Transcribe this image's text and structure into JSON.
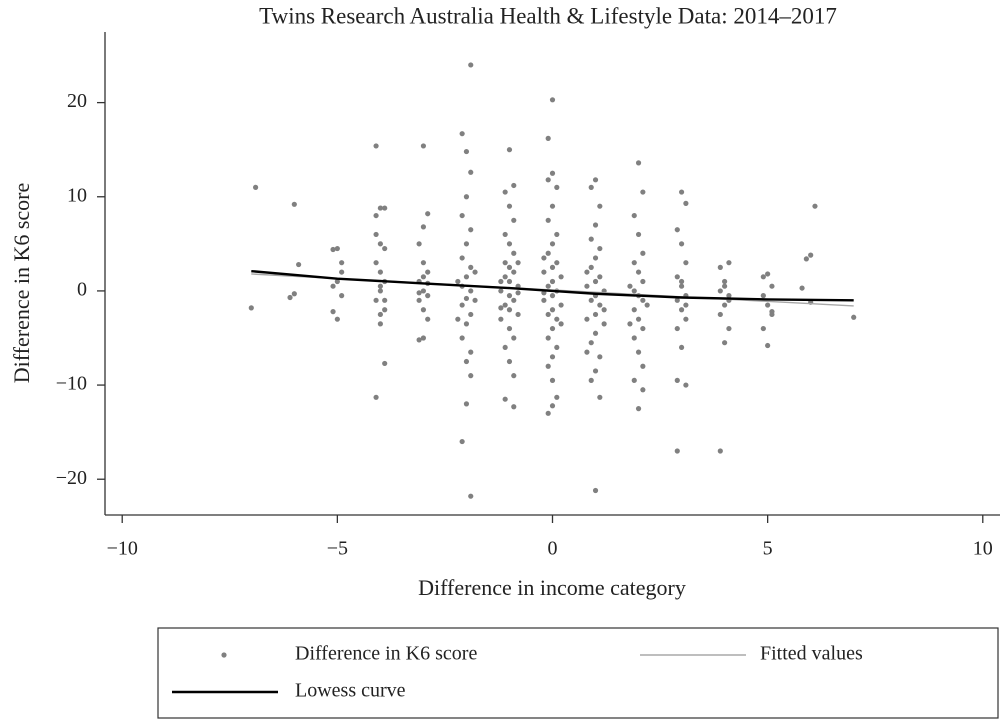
{
  "chart_data": {
    "type": "scatter",
    "title": "Twins Research Australia Health & Lifestyle Data: 2014–2017",
    "xlabel": "Difference in income category",
    "ylabel": "Difference in K6 score",
    "xlim": [
      -10.4,
      10.4
    ],
    "ylim": [
      -23.8,
      27.5
    ],
    "xticks": [
      {
        "value": -10,
        "label": "−10"
      },
      {
        "value": -5,
        "label": "−5"
      },
      0,
      5,
      10
    ],
    "yticks": [
      {
        "value": -20,
        "label": "−20"
      },
      {
        "value": -10,
        "label": "−10"
      },
      0,
      10,
      20
    ],
    "series": [
      {
        "name": "Difference in K6 score",
        "style": "markers",
        "color": "#808080",
        "x": [
          -7.0,
          -6.9,
          -6.1,
          -6.0,
          -6.0,
          -5.9,
          -5.1,
          -5.0,
          -5.1,
          -4.9,
          -5.0,
          -5.1,
          -4.9,
          -5.0,
          -4.9,
          -4.1,
          -4.1,
          -4.0,
          -3.9,
          -4.0,
          -4.1,
          -4.0,
          -3.9,
          -4.0,
          -4.1,
          -3.9,
          -4.0,
          -3.9,
          -4.1,
          -4.0,
          -3.9,
          -4.1,
          -4.0,
          -3.9,
          -3.0,
          -2.9,
          -3.0,
          -3.1,
          -3.0,
          -2.9,
          -3.1,
          -3.0,
          -2.9,
          -3.1,
          -3.0,
          -2.9,
          -3.0,
          -3.1,
          -2.9,
          -3.0,
          -3.1,
          -2.1,
          -1.9,
          -2.0,
          -1.9,
          -2.0,
          -2.1,
          -1.9,
          -2.0,
          -2.1,
          -1.9,
          -2.0,
          -2.1,
          -1.9,
          -2.0,
          -2.1,
          -1.9,
          -2.0,
          -2.1,
          -1.9,
          -2.0,
          -1.9,
          -2.0,
          -2.1,
          -1.9,
          -2.2,
          -1.8,
          -2.2,
          -1.8,
          -1.0,
          -0.9,
          -1.1,
          -1.0,
          -0.9,
          -1.1,
          -1.0,
          -0.9,
          -1.1,
          -1.0,
          -0.9,
          -1.1,
          -1.0,
          -0.8,
          -1.2,
          -1.0,
          -0.9,
          -1.1,
          -1.0,
          -0.8,
          -1.2,
          -1.0,
          -0.9,
          -1.1,
          -1.0,
          -0.9,
          -1.1,
          -0.9,
          -1.2,
          -0.8,
          -1.2,
          -0.8,
          0.0,
          -0.1,
          0.0,
          -0.1,
          0.1,
          0.0,
          -0.1,
          0.1,
          0.0,
          -0.1,
          0.1,
          0.0,
          -0.2,
          0.2,
          0.0,
          -0.1,
          0.1,
          0.0,
          -0.2,
          0.2,
          0.0,
          -0.1,
          0.1,
          0.0,
          -0.1,
          0.1,
          0.0,
          -0.1,
          0.0,
          0.1,
          0.0,
          -0.1,
          -0.2,
          0.2,
          -0.2,
          1.0,
          0.9,
          1.1,
          1.0,
          0.9,
          1.1,
          1.0,
          0.9,
          1.1,
          1.0,
          0.8,
          1.2,
          1.0,
          0.9,
          1.1,
          1.0,
          0.8,
          1.2,
          1.0,
          0.9,
          1.1,
          1.0,
          0.9,
          1.1,
          1.0,
          0.8,
          1.2,
          0.8,
          2.0,
          2.1,
          1.9,
          2.0,
          2.1,
          1.9,
          2.0,
          2.1,
          1.9,
          2.0,
          2.1,
          1.9,
          2.0,
          2.1,
          1.9,
          2.0,
          2.1,
          1.9,
          2.0,
          2.1,
          1.8,
          2.2,
          1.8,
          3.0,
          3.1,
          2.9,
          3.0,
          3.1,
          2.9,
          3.0,
          3.1,
          2.9,
          3.0,
          3.1,
          2.9,
          3.0,
          3.1,
          2.9,
          2.9,
          3.0,
          3.1,
          3.9,
          4.1,
          4.0,
          3.9,
          4.1,
          4.0,
          3.9,
          4.1,
          4.0,
          3.9,
          4.0,
          4.1,
          4.9,
          5.0,
          5.1,
          4.9,
          5.0,
          5.1,
          4.9,
          5.0,
          5.1,
          5.9,
          6.0,
          6.1,
          6.0,
          7.0,
          5.8
        ],
        "y": [
          -1.8,
          11,
          -0.7,
          -0.3,
          9.2,
          2.8,
          4.4,
          4.5,
          0.5,
          -0.5,
          -3,
          -2.2,
          2,
          1,
          3,
          15.4,
          8,
          8.8,
          8.8,
          5,
          3,
          2,
          1,
          0,
          -1,
          -2,
          -3.5,
          -7.7,
          -11.3,
          -2.5,
          4.5,
          6,
          0.5,
          -1,
          15.4,
          8.2,
          6.8,
          5,
          3,
          2,
          1,
          0,
          -0.5,
          -1,
          -2,
          -3,
          -5,
          -5.2,
          0.8,
          1.5,
          -0.2,
          16.7,
          24,
          14.8,
          12.6,
          10,
          8,
          6.5,
          5,
          3.5,
          2.5,
          1.5,
          0.5,
          0,
          -0.8,
          -1.5,
          -2.5,
          -3.5,
          -5,
          -6.5,
          -7.5,
          -9,
          -12,
          -16,
          -21.8,
          1,
          -1,
          -3,
          2,
          15,
          11.2,
          10.5,
          9,
          7.5,
          6,
          5,
          4,
          3,
          2.5,
          2,
          1.5,
          1,
          0.5,
          0,
          -0.5,
          -1,
          -1.5,
          -2,
          -2.5,
          -3,
          -4,
          -5,
          -6,
          -7.5,
          -9,
          -11.5,
          -12.3,
          1,
          -0.2,
          -1.8,
          3,
          20.3,
          16.2,
          12.5,
          11.8,
          11,
          9,
          7.5,
          6,
          5,
          4,
          3,
          2.5,
          2,
          1.5,
          1,
          0.5,
          0,
          -0.5,
          -1,
          -1.5,
          -2,
          -2.5,
          -3,
          -4,
          -5,
          -6,
          -7,
          -8,
          -9.5,
          -11.3,
          -12.2,
          -13,
          3.5,
          -3.5,
          -0.2,
          11.8,
          11,
          9,
          7,
          5.5,
          4.5,
          3.5,
          2.5,
          1.5,
          1,
          0.5,
          0,
          -0.5,
          -1,
          -1.5,
          -2.5,
          -3,
          -3.5,
          -4.5,
          -5.5,
          -7,
          -8.5,
          -9.5,
          -11.3,
          -21.2,
          2,
          -2,
          -6.5,
          13.6,
          10.5,
          8,
          6,
          4,
          3,
          2,
          1,
          0,
          -0.5,
          -1,
          -2,
          -3,
          -4,
          -5,
          -6.5,
          -8,
          -9.5,
          -12.5,
          -10.5,
          0.5,
          -1.5,
          -3.5,
          10.5,
          9.3,
          6.5,
          5,
          3,
          1.5,
          0.5,
          -0.5,
          -1,
          -2,
          -3,
          -4,
          -6,
          -10,
          -9.5,
          -17,
          1,
          -1.5,
          2.5,
          3,
          1,
          0,
          -0.5,
          -1.5,
          -2.5,
          -4,
          -5.5,
          -17,
          0.5,
          -1,
          1.5,
          1.8,
          0.5,
          -0.5,
          -1.5,
          -2.5,
          -4,
          -5.8,
          -2.2,
          3.4,
          3.8,
          9,
          -1.2,
          -2.8,
          0.3
        ]
      },
      {
        "name": "Fitted values",
        "style": "line",
        "color": "#a8a8a8",
        "x": [
          -7,
          7
        ],
        "y": [
          1.8,
          -1.6
        ]
      },
      {
        "name": "Lowess curve",
        "style": "line",
        "color": "#000000",
        "x": [
          -7,
          -5,
          -3,
          -1,
          0,
          1,
          3,
          5,
          7
        ],
        "y": [
          2.1,
          1.3,
          0.8,
          0.3,
          0,
          -0.3,
          -0.7,
          -0.9,
          -1.0
        ]
      }
    ]
  }
}
